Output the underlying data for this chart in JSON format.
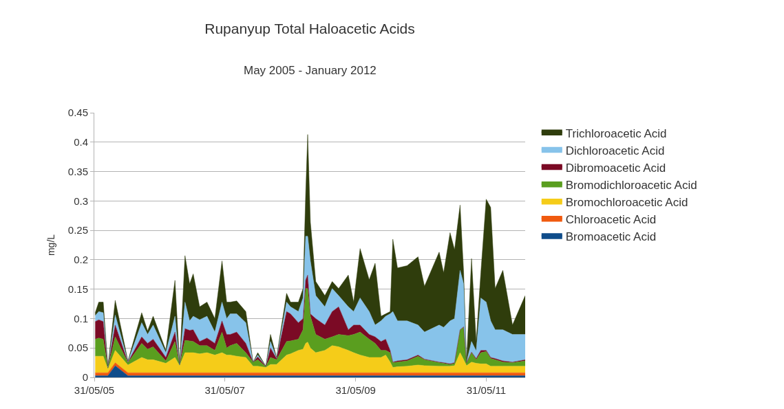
{
  "chart_data": {
    "type": "area",
    "stacked": true,
    "title": "Rupanyup Total Haloacetic Acids",
    "subtitle": "May 2005 - January 2012",
    "ylabel": "mg/L",
    "x": [
      "2005-06-05",
      "2005-06-25",
      "2005-07-20",
      "2005-08-15",
      "2005-09-25",
      "2005-12-05",
      "2006-02-20",
      "2006-03-25",
      "2006-04-25",
      "2006-07-05",
      "2006-08-25",
      "2006-09-20",
      "2006-10-20",
      "2006-11-15",
      "2006-12-05",
      "2007-01-10",
      "2007-02-20",
      "2007-04-05",
      "2007-05-15",
      "2007-06-10",
      "2007-06-30",
      "2007-08-05",
      "2007-09-25",
      "2007-11-05",
      "2007-12-01",
      "2008-01-15",
      "2008-02-10",
      "2008-03-15",
      "2008-05-10",
      "2008-06-01",
      "2008-07-15",
      "2008-08-10",
      "2008-08-25",
      "2008-09-05",
      "2008-09-20",
      "2008-10-20",
      "2008-12-10",
      "2009-01-20",
      "2009-02-25",
      "2009-04-20",
      "2009-05-20",
      "2009-06-25",
      "2009-08-15",
      "2009-09-17",
      "2009-10-20",
      "2009-11-15",
      "2009-12-10",
      "2009-12-25",
      "2010-01-20",
      "2010-03-15",
      "2010-05-15",
      "2010-06-20",
      "2010-09-10",
      "2010-10-05",
      "2010-11-10",
      "2010-12-05",
      "2011-01-05",
      "2011-01-25",
      "2011-02-10",
      "2011-03-10",
      "2011-04-05",
      "2011-05-01",
      "2011-05-31",
      "2011-06-25",
      "2011-07-20",
      "2011-09-01",
      "2011-10-25",
      "2012-01-04"
    ],
    "series": [
      {
        "name": "Bromoacetic Acid",
        "color": "#0f4c8a",
        "values": [
          0.003,
          0.003,
          0.003,
          0.003,
          0.02,
          0.003,
          0.003,
          0.003,
          0.003,
          0.003,
          0.003,
          0.003,
          0.003,
          0.003,
          0.003,
          0.003,
          0.003,
          0.003,
          0.003,
          0.003,
          0.003,
          0.003,
          0.003,
          0.003,
          0.003,
          0.003,
          0.003,
          0.003,
          0.003,
          0.003,
          0.003,
          0.003,
          0.003,
          0.003,
          0.003,
          0.003,
          0.003,
          0.003,
          0.003,
          0.003,
          0.003,
          0.003,
          0.003,
          0.003,
          0.003,
          0.003,
          0.003,
          0.003,
          0.003,
          0.003,
          0.003,
          0.003,
          0.003,
          0.003,
          0.003,
          0.003,
          0.003,
          0.003,
          0.003,
          0.003,
          0.003,
          0.003,
          0.003,
          0.003,
          0.003,
          0.003,
          0.003,
          0.003
        ]
      },
      {
        "name": "Chloroacetic Acid",
        "color": "#f05a0f",
        "values": [
          0.005,
          0.005,
          0.005,
          0.005,
          0.005,
          0.005,
          0.005,
          0.005,
          0.005,
          0.005,
          0.005,
          0.005,
          0.005,
          0.005,
          0.005,
          0.005,
          0.005,
          0.005,
          0.005,
          0.005,
          0.005,
          0.005,
          0.005,
          0.005,
          0.005,
          0.005,
          0.005,
          0.005,
          0.005,
          0.005,
          0.005,
          0.005,
          0.005,
          0.005,
          0.005,
          0.005,
          0.005,
          0.005,
          0.005,
          0.005,
          0.005,
          0.005,
          0.005,
          0.005,
          0.005,
          0.005,
          0.005,
          0.005,
          0.005,
          0.005,
          0.005,
          0.005,
          0.005,
          0.005,
          0.005,
          0.005,
          0.005,
          0.005,
          0.005,
          0.005,
          0.005,
          0.005,
          0.005,
          0.005,
          0.005,
          0.005,
          0.005,
          0.005
        ]
      },
      {
        "name": "Bromochloroacetic Acid",
        "color": "#f5cc19",
        "values": [
          0.028,
          0.028,
          0.028,
          0.006,
          0.021,
          0.013,
          0.026,
          0.022,
          0.022,
          0.016,
          0.026,
          0.012,
          0.034,
          0.034,
          0.034,
          0.032,
          0.034,
          0.03,
          0.034,
          0.03,
          0.03,
          0.028,
          0.026,
          0.011,
          0.011,
          0.009,
          0.014,
          0.014,
          0.03,
          0.032,
          0.038,
          0.04,
          0.05,
          0.052,
          0.042,
          0.034,
          0.038,
          0.046,
          0.044,
          0.038,
          0.034,
          0.03,
          0.026,
          0.026,
          0.026,
          0.03,
          0.018,
          0.009,
          0.01,
          0.011,
          0.013,
          0.012,
          0.011,
          0.011,
          0.011,
          0.012,
          0.034,
          0.022,
          0.012,
          0.018,
          0.016,
          0.015,
          0.015,
          0.011,
          0.011,
          0.011,
          0.011,
          0.011
        ]
      },
      {
        "name": "Bromodichloroacetic Acid",
        "color": "#5a9e1f",
        "values": [
          0.029,
          0.031,
          0.029,
          0.002,
          0.023,
          0.004,
          0.024,
          0.018,
          0.022,
          0.004,
          0.027,
          0.001,
          0.021,
          0.02,
          0.019,
          0.014,
          0.012,
          0.008,
          0.035,
          0.012,
          0.016,
          0.022,
          0.008,
          0.007,
          0.011,
          0.001,
          0.012,
          0.008,
          0.023,
          0.022,
          0.019,
          0.033,
          0.093,
          0.091,
          0.054,
          0.031,
          0.019,
          0.015,
          0.021,
          0.025,
          0.031,
          0.039,
          0.031,
          0.024,
          0.012,
          0.008,
          0.016,
          0.008,
          0.008,
          0.009,
          0.015,
          0.01,
          0.006,
          0.005,
          0.003,
          0.004,
          0.039,
          0.055,
          0.004,
          0.016,
          0.006,
          0.019,
          0.021,
          0.013,
          0.011,
          0.007,
          0.006,
          0.009
        ]
      },
      {
        "name": "Dibromoacetic Acid",
        "color": "#7b0a25",
        "values": [
          0.03,
          0.031,
          0.03,
          0.001,
          0.02,
          0.001,
          0.011,
          0.01,
          0.013,
          0.006,
          0.016,
          0.001,
          0.02,
          0.018,
          0.02,
          0.007,
          0.013,
          0.012,
          0.019,
          0.023,
          0.019,
          0.019,
          0.016,
          0.0,
          0.005,
          0.001,
          0.016,
          0.002,
          0.051,
          0.046,
          0.028,
          0.019,
          0.015,
          0.023,
          0.004,
          0.027,
          0.024,
          0.043,
          0.047,
          0.01,
          0.016,
          0.012,
          0.008,
          0.011,
          0.015,
          0.019,
          0.004,
          0.001,
          0.002,
          0.002,
          0.002,
          0.001,
          0.001,
          0.001,
          0.001,
          0.001,
          0.0,
          0.001,
          0.001,
          0.001,
          0.002,
          0.004,
          0.002,
          0.002,
          0.002,
          0.002,
          0.001,
          0.002
        ]
      },
      {
        "name": "Dichloroacetic Acid",
        "color": "#87c3ea",
        "values": [
          0.01,
          0.014,
          0.015,
          0.001,
          0.017,
          0.001,
          0.024,
          0.015,
          0.024,
          0.008,
          0.027,
          0.0,
          0.045,
          0.016,
          0.023,
          0.037,
          0.037,
          0.019,
          0.032,
          0.027,
          0.035,
          0.031,
          0.035,
          0.0,
          0.003,
          0.0,
          0.011,
          0.001,
          0.016,
          0.012,
          0.019,
          0.035,
          0.074,
          0.066,
          0.09,
          0.039,
          0.031,
          0.039,
          0.019,
          0.039,
          0.023,
          0.046,
          0.039,
          0.02,
          0.035,
          0.039,
          0.062,
          0.086,
          0.068,
          0.066,
          0.051,
          0.046,
          0.063,
          0.06,
          0.073,
          0.075,
          0.101,
          0.073,
          0.001,
          0.018,
          0.013,
          0.089,
          0.082,
          0.062,
          0.049,
          0.053,
          0.047,
          0.043
        ]
      },
      {
        "name": "Trichloroacetic Acid",
        "color": "#2f3d0c",
        "values": [
          0.005,
          0.016,
          0.018,
          0.001,
          0.025,
          0.001,
          0.017,
          0.006,
          0.015,
          0.004,
          0.061,
          0.001,
          0.079,
          0.063,
          0.072,
          0.022,
          0.024,
          0.023,
          0.07,
          0.028,
          0.02,
          0.022,
          0.019,
          0.0,
          0.004,
          0.0,
          0.012,
          0.001,
          0.015,
          0.008,
          0.016,
          0.016,
          0.074,
          0.173,
          0.066,
          0.024,
          0.019,
          0.012,
          0.012,
          0.054,
          0.016,
          0.084,
          0.054,
          0.105,
          0.008,
          0.004,
          0.004,
          0.123,
          0.09,
          0.094,
          0.116,
          0.078,
          0.124,
          0.093,
          0.15,
          0.117,
          0.111,
          0.019,
          0.0,
          0.141,
          0.016,
          0.043,
          0.175,
          0.193,
          0.07,
          0.101,
          0.016,
          0.066
        ]
      }
    ],
    "xlim": [
      "2005-05-31",
      "2012-01-04"
    ],
    "xticks": [
      {
        "value": "2005-05-31",
        "label": "31/05/05"
      },
      {
        "value": "2007-05-31",
        "label": "31/05/07"
      },
      {
        "value": "2009-05-31",
        "label": "31/05/09"
      },
      {
        "value": "2011-05-31",
        "label": "31/05/11"
      }
    ],
    "ylim": [
      0,
      0.45
    ],
    "yticks": [
      0,
      0.05,
      0.1,
      0.15,
      0.2,
      0.25,
      0.3,
      0.35,
      0.4,
      0.45
    ],
    "grid": "y",
    "legend": "right"
  }
}
